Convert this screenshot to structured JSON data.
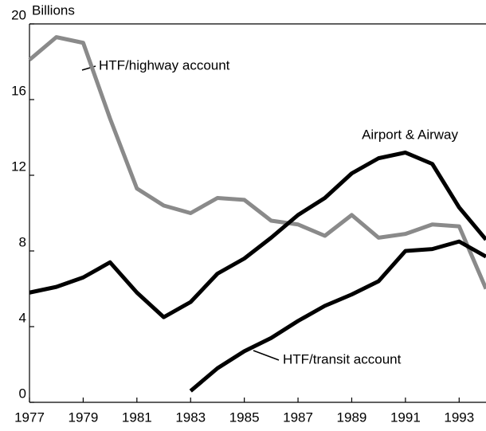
{
  "chart_data": {
    "type": "line",
    "y_label": "Billions",
    "x": [
      1977,
      1978,
      1979,
      1980,
      1981,
      1982,
      1983,
      1984,
      1985,
      1986,
      1987,
      1988,
      1989,
      1990,
      1991,
      1992,
      1993,
      1994
    ],
    "series": [
      {
        "name": "HTF/highway account",
        "color": "#8a8a8a",
        "values": [
          18.1,
          19.3,
          19.0,
          15.0,
          11.3,
          10.4,
          10.0,
          10.8,
          10.7,
          9.6,
          9.4,
          8.8,
          9.9,
          8.7,
          8.9,
          9.4,
          9.3,
          6.0
        ]
      },
      {
        "name": "Airport & Airway",
        "color": "#000000",
        "values": [
          5.8,
          6.1,
          6.6,
          7.4,
          5.8,
          4.5,
          5.3,
          6.8,
          7.6,
          8.7,
          9.9,
          10.8,
          12.1,
          12.9,
          13.2,
          12.6,
          10.3,
          8.6
        ]
      },
      {
        "name": "HTF/transit account",
        "color": "#000000",
        "values": [
          null,
          null,
          null,
          null,
          null,
          null,
          0.6,
          1.8,
          2.7,
          3.4,
          4.3,
          5.1,
          5.7,
          6.4,
          8.0,
          8.1,
          8.5,
          7.7
        ]
      }
    ],
    "xlim": [
      1977,
      1994
    ],
    "ylim": [
      0,
      20
    ],
    "xticks": [
      1977,
      1979,
      1981,
      1983,
      1985,
      1987,
      1989,
      1991,
      1993
    ],
    "yticks": [
      0,
      4,
      8,
      12,
      16,
      20
    ]
  }
}
